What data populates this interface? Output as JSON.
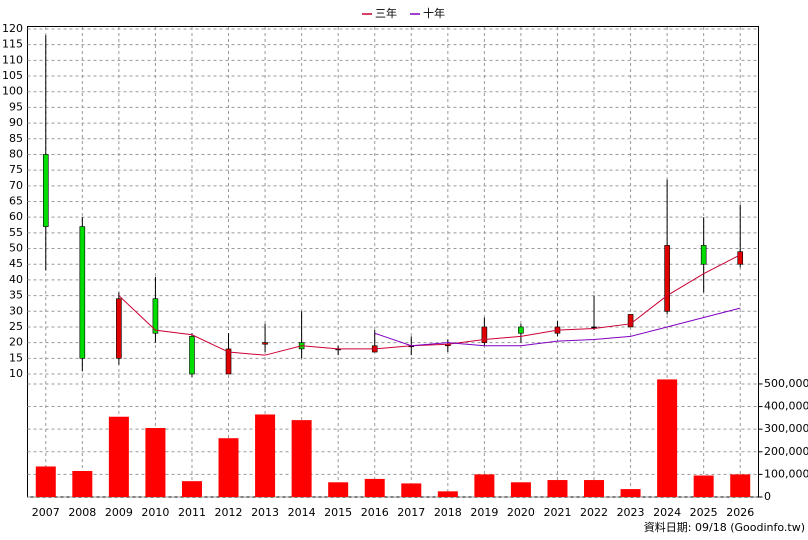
{
  "chart_data": {
    "type": "candlestick",
    "categories": [
      "2007",
      "2008",
      "2009",
      "2010",
      "2011",
      "2012",
      "2013",
      "2014",
      "2015",
      "2016",
      "2017",
      "2018",
      "2019",
      "2020",
      "2021",
      "2022",
      "2023",
      "2024",
      "2025",
      "2026"
    ],
    "ohlc": {
      "open": [
        80,
        57,
        15,
        34,
        22,
        10,
        19.5,
        20,
        18,
        17,
        19,
        19,
        20,
        25,
        23,
        25,
        25,
        30,
        51,
        45
      ],
      "high": [
        118,
        60,
        36,
        41,
        23,
        23,
        26,
        30,
        19,
        24,
        22,
        21,
        28,
        26,
        27,
        35,
        29,
        72,
        60,
        64
      ],
      "low": [
        43,
        11,
        13,
        20,
        9,
        10,
        17,
        15,
        16,
        17,
        16,
        17,
        19,
        20,
        22,
        24,
        25,
        29,
        36,
        44
      ],
      "close": [
        57,
        15,
        34,
        23,
        10,
        18,
        20,
        18,
        18,
        19,
        19,
        19.5,
        25,
        23,
        25,
        25,
        29,
        51,
        45,
        49
      ]
    },
    "up_color": "#e00000",
    "down_color": "#00dd00",
    "series": [
      {
        "name": "三年",
        "color": "#cc0033",
        "values": [
          null,
          null,
          35,
          24,
          22.5,
          17,
          16,
          19,
          18,
          18,
          19,
          19.5,
          21,
          22,
          24,
          24.5,
          26,
          35,
          42,
          48
        ]
      },
      {
        "name": "十年",
        "color": "#8000c0",
        "values": [
          null,
          null,
          null,
          null,
          null,
          null,
          null,
          null,
          null,
          23,
          19,
          20,
          19,
          19,
          20.5,
          21,
          22,
          25,
          28,
          31
        ]
      }
    ],
    "volume": {
      "axis": "y2",
      "color": "#ff0000",
      "values": [
        135000,
        115000,
        355000,
        305000,
        70000,
        260000,
        365000,
        340000,
        65000,
        80000,
        60000,
        25000,
        100000,
        65000,
        75000,
        75000,
        35000,
        520000,
        95000,
        100000
      ]
    },
    "ylim": [
      10,
      120
    ],
    "yticks": [
      10,
      15,
      20,
      25,
      30,
      35,
      40,
      45,
      50,
      55,
      60,
      65,
      70,
      75,
      80,
      85,
      90,
      95,
      100,
      105,
      110,
      115,
      120
    ],
    "y2lim": [
      0,
      544000
    ],
    "y2ticks": [
      {
        "value": 0,
        "label": "0"
      },
      {
        "value": 100000,
        "label": "100,000"
      },
      {
        "value": 200000,
        "label": "200,000"
      },
      {
        "value": 300000,
        "label": "300,000"
      },
      {
        "value": 400000,
        "label": "400,000"
      },
      {
        "value": 500000,
        "label": "500,000"
      }
    ],
    "grid": true,
    "source": "資料日期: 09/18 (Goodinfo.tw)"
  }
}
